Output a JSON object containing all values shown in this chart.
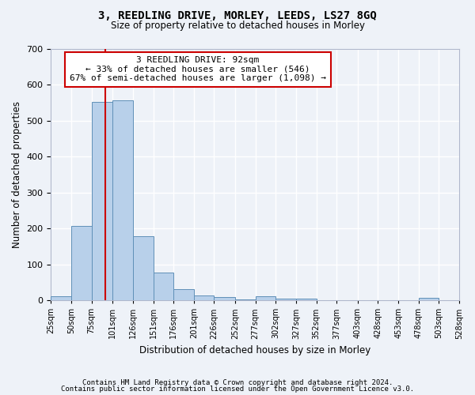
{
  "title": "3, REEDLING DRIVE, MORLEY, LEEDS, LS27 8GQ",
  "subtitle": "Size of property relative to detached houses in Morley",
  "xlabel": "Distribution of detached houses by size in Morley",
  "ylabel": "Number of detached properties",
  "bar_color": "#b8d0ea",
  "bar_edge_color": "#6090b8",
  "vline_color": "#cc0000",
  "vline_x": 92,
  "bin_edges": [
    25,
    50,
    75,
    101,
    126,
    151,
    176,
    201,
    226,
    252,
    277,
    302,
    327,
    352,
    377,
    403,
    428,
    453,
    478,
    503,
    528
  ],
  "bin_labels": [
    "25sqm",
    "50sqm",
    "75sqm",
    "101sqm",
    "126sqm",
    "151sqm",
    "176sqm",
    "201sqm",
    "226sqm",
    "252sqm",
    "277sqm",
    "302sqm",
    "327sqm",
    "352sqm",
    "377sqm",
    "403sqm",
    "428sqm",
    "453sqm",
    "478sqm",
    "503sqm",
    "528sqm"
  ],
  "counts": [
    12,
    207,
    551,
    556,
    179,
    78,
    32,
    13,
    8,
    3,
    12,
    5,
    5,
    0,
    0,
    0,
    0,
    0,
    6,
    0
  ],
  "ylim": [
    0,
    700
  ],
  "yticks": [
    0,
    100,
    200,
    300,
    400,
    500,
    600,
    700
  ],
  "annotation_text": "3 REEDLING DRIVE: 92sqm\n← 33% of detached houses are smaller (546)\n67% of semi-detached houses are larger (1,098) →",
  "annotation_box_color": "#ffffff",
  "annotation_box_edge": "#cc0000",
  "footer1": "Contains HM Land Registry data © Crown copyright and database right 2024.",
  "footer2": "Contains public sector information licensed under the Open Government Licence v3.0.",
  "background_color": "#eef2f8",
  "grid_color": "#ffffff"
}
